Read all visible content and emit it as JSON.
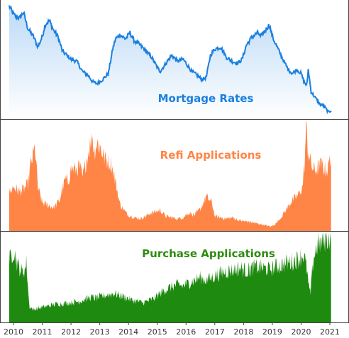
{
  "colors": {
    "rates_line": "#1a7fe0",
    "rates_fill_top": "#bcdaf6",
    "rates_fill_bottom": "#ffffff",
    "refi": "#ff8547",
    "refi_text": "#ff8547",
    "purchase": "#1f8a10",
    "purchase_text": "#2e8b0e",
    "rates_text": "#1a7fe0",
    "frame": "#444444"
  },
  "chart_data": {
    "type": "area",
    "x_start_year": 2009.85,
    "x_end_year": 2021.3,
    "x_ticks": [
      "2010",
      "2011",
      "2012",
      "2013",
      "2014",
      "2015",
      "2016",
      "2017",
      "2018",
      "2019",
      "2020",
      "2021"
    ],
    "grid": false,
    "panels": [
      {
        "name": "Mortgage Rates",
        "type": "line",
        "ylim": [
          2.55,
          5.4
        ],
        "series": {
          "x": [
            2009.85,
            2010.0,
            2010.2,
            2010.35,
            2010.5,
            2010.7,
            2010.85,
            2011.0,
            2011.1,
            2011.25,
            2011.4,
            2011.55,
            2011.7,
            2011.85,
            2012.0,
            2012.2,
            2012.4,
            2012.6,
            2012.75,
            2012.9,
            2013.1,
            2013.3,
            2013.45,
            2013.55,
            2013.7,
            2013.9,
            2014.05,
            2014.2,
            2014.4,
            2014.6,
            2014.8,
            2015.0,
            2015.1,
            2015.3,
            2015.5,
            2015.7,
            2015.9,
            2016.0,
            2016.2,
            2016.4,
            2016.55,
            2016.7,
            2016.85,
            2017.0,
            2017.2,
            2017.4,
            2017.6,
            2017.8,
            2017.95,
            2018.1,
            2018.3,
            2018.5,
            2018.6,
            2018.75,
            2018.9,
            2019.0,
            2019.2,
            2019.4,
            2019.55,
            2019.7,
            2019.85,
            2020.0,
            2020.1,
            2020.2,
            2020.25,
            2020.35,
            2020.5,
            2020.65,
            2020.8,
            2020.95,
            2021.05
          ],
          "y": [
            5.3,
            5.1,
            5.0,
            5.15,
            4.75,
            4.55,
            4.3,
            4.55,
            4.85,
            4.95,
            4.7,
            4.55,
            4.2,
            4.1,
            4.0,
            3.95,
            3.7,
            3.6,
            3.45,
            3.4,
            3.5,
            3.65,
            4.25,
            4.5,
            4.6,
            4.5,
            4.65,
            4.45,
            4.35,
            4.2,
            4.05,
            3.8,
            3.7,
            3.9,
            4.1,
            3.95,
            4.0,
            3.9,
            3.7,
            3.6,
            3.5,
            3.55,
            4.1,
            4.25,
            4.3,
            4.05,
            3.95,
            3.9,
            4.0,
            4.35,
            4.55,
            4.65,
            4.55,
            4.7,
            4.85,
            4.55,
            4.25,
            3.95,
            3.75,
            3.65,
            3.75,
            3.65,
            3.45,
            3.35,
            3.75,
            3.2,
            3.05,
            2.9,
            2.85,
            2.7,
            2.75
          ]
        }
      },
      {
        "name": "Refi Applications",
        "type": "area",
        "ylim": [
          0,
          9000
        ],
        "series": {
          "x": [
            2009.85,
            2010.0,
            2010.2,
            2010.35,
            2010.5,
            2010.6,
            2010.75,
            2010.85,
            2011.0,
            2011.2,
            2011.4,
            2011.6,
            2011.7,
            2011.8,
            2011.9,
            2012.0,
            2012.2,
            2012.3,
            2012.4,
            2012.5,
            2012.6,
            2012.7,
            2012.75,
            2012.8,
            2012.9,
            2013.0,
            2013.2,
            2013.4,
            2013.5,
            2013.6,
            2013.7,
            2013.9,
            2014.0,
            2014.2,
            2014.4,
            2014.6,
            2014.8,
            2015.0,
            2015.1,
            2015.3,
            2015.5,
            2015.7,
            2015.9,
            2016.1,
            2016.3,
            2016.5,
            2016.6,
            2016.7,
            2016.9,
            2017.0,
            2017.2,
            2017.4,
            2017.6,
            2017.8,
            2018.0,
            2018.2,
            2018.4,
            2018.6,
            2018.8,
            2018.95,
            2019.1,
            2019.3,
            2019.5,
            2019.65,
            2019.8,
            2019.95,
            2020.05,
            2020.12,
            2020.18,
            2020.22,
            2020.3,
            2020.4,
            2020.5,
            2020.6,
            2020.7,
            2020.8,
            2020.9,
            2021.0,
            2021.05
          ],
          "y": [
            3100,
            3600,
            3200,
            3400,
            3800,
            5400,
            6800,
            3500,
            2300,
            2100,
            1900,
            2500,
            3400,
            4200,
            4000,
            5100,
            5000,
            5300,
            4300,
            5400,
            6400,
            7400,
            7800,
            6400,
            7200,
            6900,
            5800,
            5500,
            4500,
            3400,
            2200,
            1500,
            1300,
            1100,
            1000,
            1200,
            1500,
            1600,
            1700,
            1200,
            1100,
            1000,
            1100,
            1500,
            1300,
            1800,
            2300,
            2800,
            2300,
            1200,
            1100,
            1000,
            1100,
            900,
            800,
            750,
            650,
            550,
            450,
            350,
            550,
            1100,
            1800,
            2400,
            2700,
            3100,
            3600,
            5400,
            8700,
            6900,
            5900,
            5100,
            4900,
            5200,
            5400,
            5100,
            4900,
            5800,
            6200
          ]
        }
      },
      {
        "name": "Purchase Applications",
        "type": "area",
        "ylim": [
          0,
          340
        ],
        "series": {
          "x": [
            2009.85,
            2010.0,
            2010.15,
            2010.3,
            2010.4,
            2010.45,
            2010.55,
            2010.7,
            2010.9,
            2011.2,
            2011.5,
            2011.8,
            2012.0,
            2012.3,
            2012.5,
            2012.7,
            2012.9,
            2013.1,
            2013.3,
            2013.5,
            2013.7,
            2013.9,
            2014.1,
            2014.3,
            2014.5,
            2014.7,
            2014.9,
            2015.1,
            2015.3,
            2015.5,
            2015.7,
            2015.9,
            2016.1,
            2016.3,
            2016.5,
            2016.7,
            2016.9,
            2017.1,
            2017.3,
            2017.5,
            2017.7,
            2017.9,
            2018.1,
            2018.3,
            2018.5,
            2018.7,
            2018.9,
            2019.1,
            2019.3,
            2019.5,
            2019.7,
            2019.9,
            2020.0,
            2020.1,
            2020.2,
            2020.27,
            2020.33,
            2020.42,
            2020.55,
            2020.7,
            2020.85,
            2021.0,
            2021.05
          ],
          "y": [
            230,
            275,
            215,
            190,
            200,
            225,
            60,
            48,
            55,
            62,
            70,
            72,
            75,
            80,
            88,
            95,
            92,
            100,
            105,
            110,
            102,
            95,
            85,
            80,
            75,
            82,
            92,
            110,
            125,
            135,
            142,
            138,
            150,
            160,
            170,
            160,
            170,
            180,
            190,
            195,
            200,
            205,
            195,
            205,
            210,
            205,
            200,
            210,
            215,
            225,
            230,
            240,
            250,
            255,
            200,
            130,
            110,
            235,
            290,
            300,
            315,
            320,
            330
          ]
        }
      }
    ]
  }
}
